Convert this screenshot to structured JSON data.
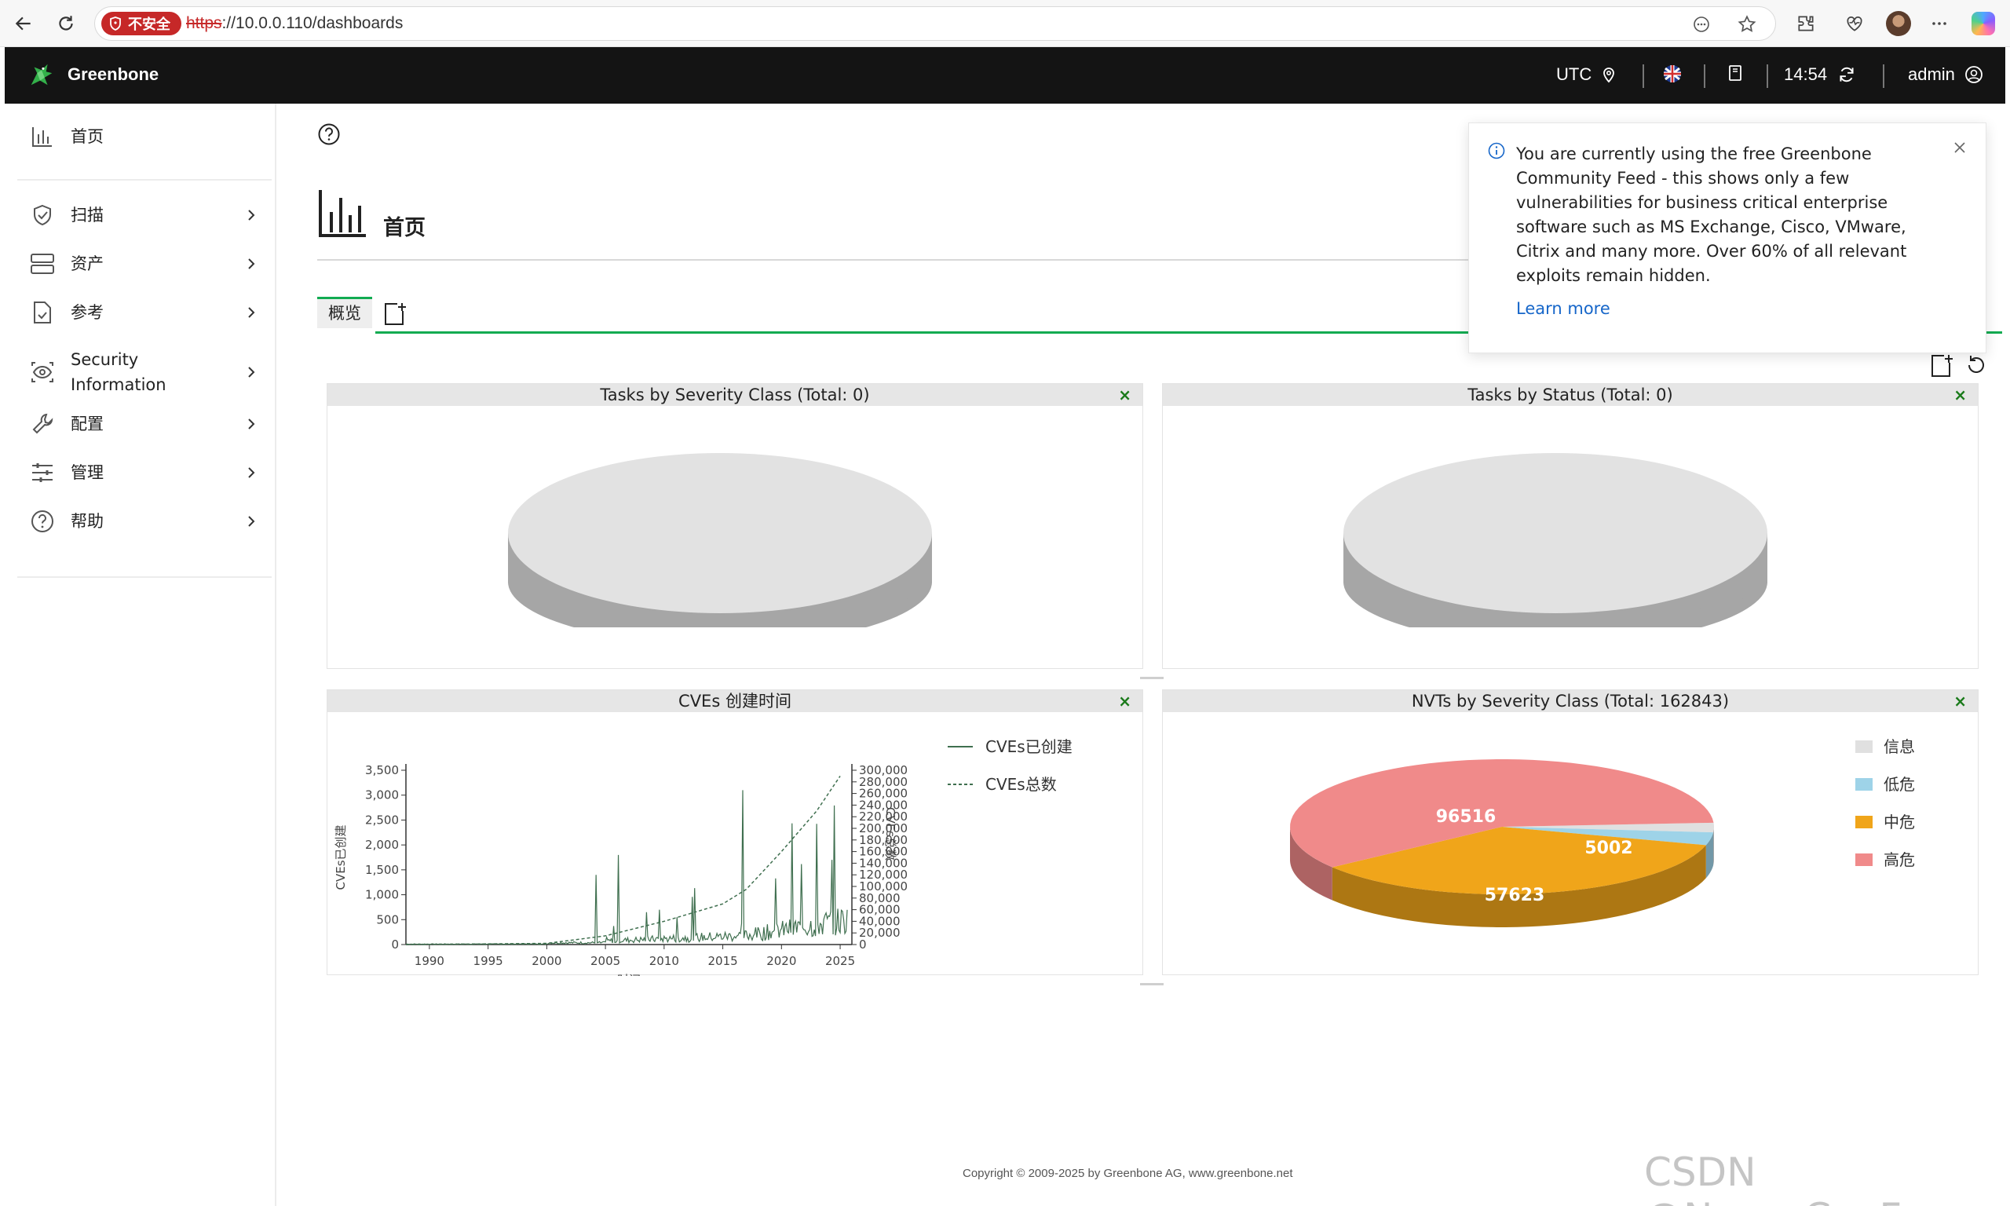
{
  "browser": {
    "insecure_label": "不安全",
    "url_scheme": "https",
    "url_rest": "://10.0.0.110/dashboards"
  },
  "header": {
    "app_name": "Greenbone",
    "timezone": "UTC",
    "time": "14:54",
    "user": "admin"
  },
  "sidebar": {
    "items": [
      {
        "label": "首页",
        "icon": "bar-chart-icon"
      },
      {
        "label": "扫描",
        "icon": "shield-icon"
      },
      {
        "label": "资产",
        "icon": "server-icon"
      },
      {
        "label": "参考",
        "icon": "document-check-icon"
      },
      {
        "label_line1": "Security",
        "label_line2": "Information",
        "icon": "eye-icon"
      },
      {
        "label": "配置",
        "icon": "wrench-icon"
      },
      {
        "label": "管理",
        "icon": "sliders-icon"
      },
      {
        "label": "帮助",
        "icon": "help-icon"
      }
    ]
  },
  "page": {
    "title": "首页",
    "tab_overview": "概览"
  },
  "notice": {
    "text": "You are currently using the free Greenbone Community Feed - this shows only a few vulnerabilities for business critical enterprise software such as MS Exchange, Cisco, VMware, Citrix and many more. Over 60% of all relevant exploits remain hidden.",
    "link": "Learn more"
  },
  "panels": {
    "tasks_severity": {
      "title": "Tasks by Severity Class (Total: 0)",
      "close": "×"
    },
    "tasks_status": {
      "title": "Tasks by Status (Total: 0)",
      "close": "×"
    },
    "cves": {
      "title": "CVEs 创建时间",
      "close": "×"
    },
    "nvts": {
      "title": "NVTs by Severity Class (Total: 162843)",
      "close": "×"
    }
  },
  "chart_data": [
    {
      "type": "line",
      "title": "CVEs 创建时间",
      "xlabel": "时间",
      "ylabel": "CVEs已创建",
      "y2label": "CVEs总数",
      "x_ticks": [
        "1990",
        "1995",
        "2000",
        "2005",
        "2010",
        "2015",
        "2020",
        "2025"
      ],
      "y_ticks": [
        "0",
        "500",
        "1,000",
        "1,500",
        "2,000",
        "2,500",
        "3,000",
        "3,500"
      ],
      "y2_ticks": [
        "0",
        "20,000",
        "40,000",
        "60,000",
        "80,000",
        "100,000",
        "120,000",
        "140,000",
        "160,000",
        "180,000",
        "200,000",
        "220,000",
        "240,000",
        "260,000",
        "280,000",
        "300,000"
      ],
      "ylim": [
        0,
        3500
      ],
      "y2lim": [
        0,
        300000
      ],
      "series": [
        {
          "name": "CVEs已创建",
          "style": "solid",
          "color": "#3f6f4f"
        },
        {
          "name": "CVEs总数",
          "style": "dashed",
          "color": "#3f6f4f",
          "x": [
            1988,
            2000,
            2005,
            2010,
            2015,
            2017,
            2020,
            2023,
            2025
          ],
          "values": [
            0,
            2000,
            15000,
            40000,
            70000,
            95000,
            160000,
            230000,
            290000
          ]
        }
      ]
    },
    {
      "type": "pie",
      "title": "NVTs by Severity Class (Total: 162843)",
      "legend_position": "right",
      "slices": [
        {
          "label": "信息",
          "value": 3702,
          "color": "#e0e0e0"
        },
        {
          "label": "低危",
          "value": 5002,
          "color": "#9ed3e8"
        },
        {
          "label": "中危",
          "value": 57623,
          "color": "#f0a51a"
        },
        {
          "label": "高危",
          "value": 96516,
          "color": "#f08a8a"
        }
      ],
      "slice_labels": [
        "96516",
        "5002",
        "57623"
      ]
    }
  ],
  "footer": {
    "copyright": "Copyright © 2009-2025 by Greenbone AG, www.greenbone.net"
  },
  "watermark": "CSDN @Nova_CaoFc"
}
